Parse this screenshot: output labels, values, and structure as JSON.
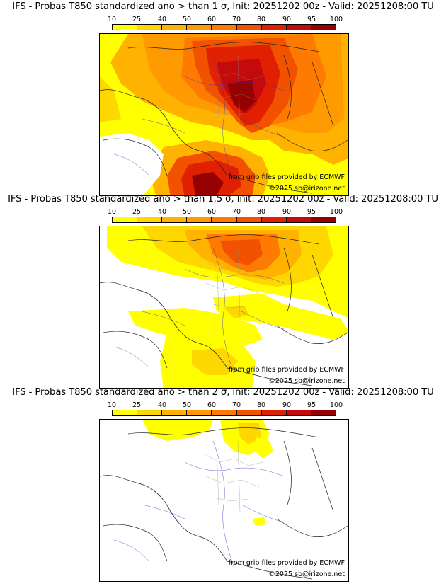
{
  "legend": {
    "labels": [
      "10",
      "25",
      "40",
      "50",
      "60",
      "70",
      "80",
      "90",
      "95",
      "100"
    ],
    "colors": [
      "#ffff00",
      "#ffd700",
      "#ffb300",
      "#ff9a00",
      "#ff7a00",
      "#f25100",
      "#e02000",
      "#c40a0a",
      "#950000",
      "#5c0000"
    ]
  },
  "panels": [
    {
      "title": "IFS - Probas T850  standardized ano > than 1 σ, Init: 20251202 00z - Valid: 20251208:00 TU",
      "source_note": "from grib files provided by ECMWF",
      "copyright": "©2025 sb@irizone.net"
    },
    {
      "title": "IFS - Probas T850  standardized ano > than 1.5 σ, Init: 20251202 00z - Valid: 20251208:00 TU",
      "source_note": "from grib files provided by ECMWF",
      "copyright": "©2025 sb@irizone.net"
    },
    {
      "title": "IFS - Probas T850  standardized ano > than 2 σ, Init: 20251202 00z - Valid: 20251208:00 TU",
      "source_note": "from grib files provided by ECMWF",
      "copyright": "©2025 sb@irizone.net"
    }
  ]
}
